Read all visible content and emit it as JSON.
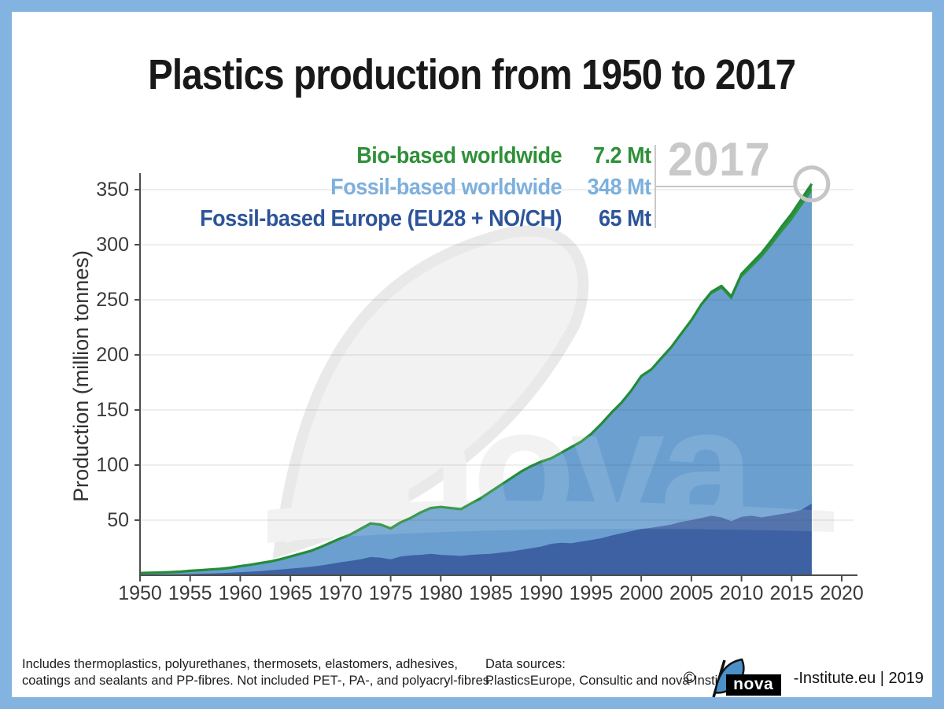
{
  "title": "Plastics production from 1950 to 2017",
  "annotation": {
    "year": "2017"
  },
  "legend": {
    "items": [
      {
        "label": "Bio-based worldwide",
        "value": "7.2 Mt",
        "color": "#2e9038"
      },
      {
        "label": "Fossil-based worldwide",
        "value": "348 Mt",
        "color": "#7db0dd"
      },
      {
        "label": "Fossil-based Europe (EU28 + NO/CH)",
        "value": "65 Mt",
        "color": "#2d5499"
      }
    ]
  },
  "watermark": {
    "text": "nova"
  },
  "footer": {
    "footnote_line1": "Includes thermoplastics, polyurethanes, thermosets, elastomers, adhesives,",
    "footnote_line2": "coatings and sealants and PP-fibres. Not included PET-, PA-, and polyacryl-fibres.",
    "datasources_line1": "Data sources:",
    "datasources_line2": "PlasticsEurope, Consultic and nova-Institute",
    "credit_copyright": "©",
    "credit_logo_text": "nova",
    "credit_text": "-Institute.eu | 2019"
  },
  "chart_data": {
    "type": "area",
    "title": "Plastics production from 1950 to 2017",
    "xlabel": "",
    "ylabel": "Production (million tonnes)",
    "x_ticks": [
      1950,
      1955,
      1960,
      1965,
      1970,
      1975,
      1980,
      1985,
      1990,
      1995,
      2000,
      2005,
      2010,
      2015,
      2020
    ],
    "y_ticks": [
      50,
      100,
      150,
      200,
      250,
      300,
      350
    ],
    "xlim": [
      1950,
      2020
    ],
    "ylim": [
      0,
      364
    ],
    "grid": "horizontal",
    "legend_position": "top-right",
    "years": [
      1950,
      1951,
      1952,
      1953,
      1954,
      1955,
      1956,
      1957,
      1958,
      1959,
      1960,
      1961,
      1962,
      1963,
      1964,
      1965,
      1966,
      1967,
      1968,
      1969,
      1970,
      1971,
      1972,
      1973,
      1974,
      1975,
      1976,
      1977,
      1978,
      1979,
      1980,
      1981,
      1982,
      1983,
      1984,
      1985,
      1986,
      1987,
      1988,
      1989,
      1990,
      1991,
      1992,
      1993,
      1994,
      1995,
      1996,
      1997,
      1998,
      1999,
      2000,
      2001,
      2002,
      2003,
      2004,
      2005,
      2006,
      2007,
      2008,
      2009,
      2010,
      2011,
      2012,
      2013,
      2014,
      2015,
      2016,
      2017
    ],
    "series": [
      {
        "name": "Bio-based worldwide",
        "color": "#2d9440",
        "values_2017_label": "7.2 Mt",
        "values": [
          0,
          0,
          0,
          0,
          0,
          0,
          0,
          0,
          0,
          0,
          0,
          0,
          0,
          0,
          0,
          0,
          0,
          0,
          0,
          0,
          0,
          0,
          0,
          0,
          0,
          0,
          0,
          0,
          0,
          0,
          0,
          0,
          0,
          0,
          0,
          0,
          0,
          0,
          0,
          0,
          0.1,
          0.1,
          0.1,
          0.2,
          0.2,
          0.2,
          0.3,
          0.3,
          0.4,
          0.5,
          0.7,
          0.8,
          1.0,
          1.2,
          1.4,
          1.6,
          1.9,
          2.2,
          2.6,
          3.0,
          3.5,
          4.0,
          4.5,
          5.0,
          5.5,
          6.0,
          6.6,
          7.2
        ]
      },
      {
        "name": "Fossil-based worldwide",
        "color": "#6a9fd0",
        "values_2017_label": "348 Mt",
        "values": [
          2.0,
          2.2,
          2.4,
          2.8,
          3.2,
          4.0,
          4.6,
          5.2,
          5.8,
          6.8,
          8.3,
          9.5,
          11,
          12.5,
          14.5,
          17,
          19.5,
          22,
          25.5,
          29.5,
          33.5,
          37,
          42,
          47,
          46,
          42.5,
          48,
          52,
          57,
          61,
          62,
          61,
          60,
          65,
          70,
          76,
          82,
          88,
          94,
          99,
          103,
          106,
          111,
          116,
          121,
          128,
          137,
          147,
          156,
          167,
          180,
          186,
          196,
          206,
          218,
          230,
          244,
          255,
          260,
          250,
          270,
          279,
          288,
          299,
          311,
          322,
          335,
          348
        ]
      },
      {
        "name": "Fossil-based Europe (EU28 + NO/CH)",
        "color": "#3d61a2",
        "values_2017_label": "65 Mt",
        "values": [
          0.4,
          0.5,
          0.6,
          0.7,
          0.9,
          1.1,
          1.4,
          1.6,
          1.9,
          2.3,
          2.8,
          3.2,
          3.8,
          4.4,
          5.2,
          6.0,
          6.8,
          7.6,
          8.8,
          10.2,
          11.8,
          13.0,
          14.5,
          16.5,
          16.0,
          14.5,
          17.0,
          18.0,
          18.5,
          19.5,
          18.5,
          18.0,
          17.5,
          18.5,
          19.0,
          19.5,
          20.5,
          21.5,
          23.0,
          24.5,
          26.0,
          28.5,
          29.5,
          29.0,
          30.5,
          32.0,
          33.5,
          36.0,
          38.0,
          40.0,
          42.0,
          43.0,
          44.5,
          46.0,
          48.5,
          50.0,
          52.0,
          54.0,
          52.5,
          49.0,
          53.0,
          54.0,
          52.5,
          54.0,
          55.5,
          57.0,
          59.5,
          65.0
        ]
      }
    ],
    "annotation_circle_color": "#c6c6c6"
  }
}
